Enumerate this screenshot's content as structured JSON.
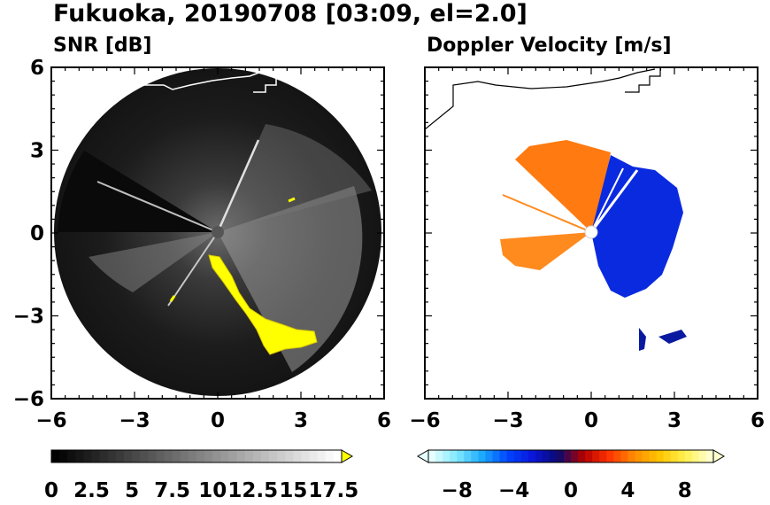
{
  "figure": {
    "title": "Fukuoka, 20190708 [03:09, el=2.0]"
  },
  "chart_data": [
    {
      "type": "heatmap",
      "title": "SNR [dB]",
      "xlim": [
        -6,
        6
      ],
      "ylim": [
        -6,
        6
      ],
      "xticks": [
        "−6",
        "−3",
        "0",
        "3",
        "6"
      ],
      "yticks": [
        "6",
        "3",
        "0",
        "−3",
        "−6"
      ],
      "xtick_values": [
        -6,
        -3,
        0,
        3,
        6
      ],
      "ytick_values": [
        6,
        3,
        0,
        -3,
        -6
      ],
      "grid": false,
      "range_radius": 5.9,
      "colorbar": {
        "min": 0,
        "max": 18,
        "step": 0.5,
        "tick_values": [
          0,
          2.5,
          5,
          7.5,
          10,
          12.5,
          15,
          17.5
        ],
        "tick_labels": [
          "0",
          "2.5",
          "5",
          "7.5",
          "10",
          "12.5",
          "15",
          "17.5"
        ],
        "extend": "max",
        "extend_color": "#ffff00",
        "low_color": "#000000",
        "high_color": "#ffffff"
      }
    },
    {
      "type": "heatmap",
      "title": "Doppler Velocity [m/s]",
      "xlim": [
        -6,
        6
      ],
      "ylim": [
        -6,
        6
      ],
      "xticks": [
        "−6",
        "−3",
        "0",
        "3",
        "6"
      ],
      "xtick_values": [
        -6,
        -3,
        0,
        3,
        6
      ],
      "grid": false,
      "colorbar": {
        "min": -10,
        "max": 10,
        "tick_values": [
          -8,
          -4,
          0,
          4,
          8
        ],
        "tick_labels": [
          "−8",
          "−4",
          "0",
          "4",
          "8"
        ],
        "extend": "both",
        "stops": [
          "#e6ffff",
          "#7fe8ff",
          "#19a8ff",
          "#0045ff",
          "#0a15d8",
          "#0a0a6e",
          "#b30000",
          "#ff3200",
          "#ff8c00",
          "#ffc400",
          "#fff04d",
          "#ffffcf"
        ]
      }
    }
  ]
}
